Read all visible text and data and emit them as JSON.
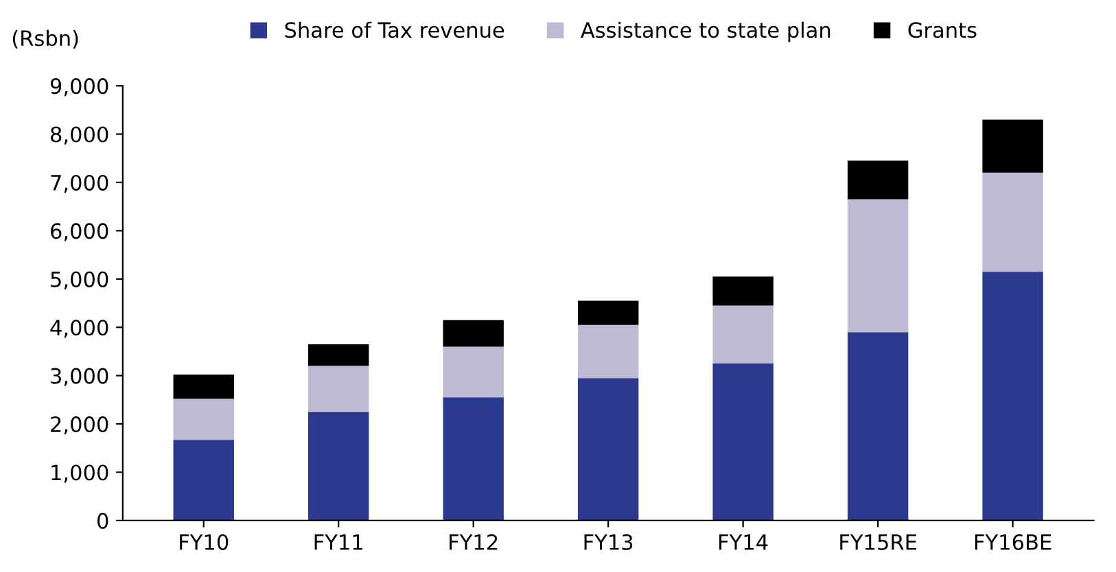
{
  "chart_data": {
    "type": "bar",
    "stacked": true,
    "ylabel": "(Rsbn)",
    "categories": [
      "FY10",
      "FY11",
      "FY12",
      "FY13",
      "FY14",
      "FY15RE",
      "FY16BE"
    ],
    "series": [
      {
        "name": "Share of Tax revenue",
        "color": "#2b3a8f",
        "values": [
          1670,
          2250,
          2550,
          2950,
          3250,
          3900,
          5150
        ]
      },
      {
        "name": "Assistance to state plan",
        "color": "#bcbbd3",
        "values": [
          850,
          950,
          1050,
          1100,
          1200,
          2750,
          2050
        ]
      },
      {
        "name": "Grants",
        "color": "#000000",
        "values": [
          500,
          450,
          550,
          500,
          600,
          800,
          1100
        ]
      }
    ],
    "ylim": [
      0,
      9000
    ],
    "yticks": [
      {
        "value": 0,
        "label": "0"
      },
      {
        "value": 1000,
        "label": "1,000"
      },
      {
        "value": 2000,
        "label": "2,000"
      },
      {
        "value": 3000,
        "label": "3,000"
      },
      {
        "value": 4000,
        "label": "4,000"
      },
      {
        "value": 5000,
        "label": "5,000"
      },
      {
        "value": 6000,
        "label": "6,000"
      },
      {
        "value": 7000,
        "label": "7,000"
      },
      {
        "value": 8000,
        "label": "8,000"
      },
      {
        "value": 9000,
        "label": "9,000"
      }
    ],
    "grid": false,
    "legend": "top"
  }
}
